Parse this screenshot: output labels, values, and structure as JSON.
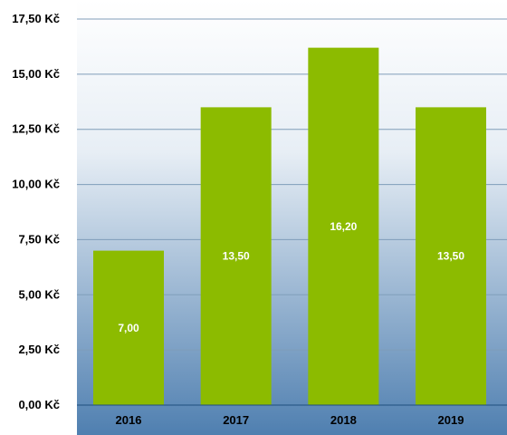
{
  "chart_data": {
    "type": "bar",
    "categories": [
      "2016",
      "2017",
      "2018",
      "2019"
    ],
    "values": [
      7.0,
      13.5,
      16.2,
      13.5
    ],
    "data_labels": [
      "7,00",
      "13,50",
      "16,20",
      "13,50"
    ],
    "ylim": [
      0,
      17.5
    ],
    "y_ticks": [
      0,
      2.5,
      5,
      7.5,
      10,
      12.5,
      15,
      17.5
    ],
    "y_tick_labels": [
      "0,00 Kč",
      "2,50 Kč",
      "5,00 Kč",
      "7,50 Kč",
      "10,00 Kč",
      "12,50 Kč",
      "15,00 Kč",
      "17,50 Kč"
    ],
    "title": "",
    "xlabel": "",
    "ylabel": "",
    "grid": true,
    "legend": "none",
    "colors": {
      "bar": "#8cbb00",
      "grid": "#7f9db9",
      "plot_top": "#ffffff",
      "plot_bottom": "#4f7fb0",
      "axis": "#1f4f7f"
    }
  }
}
